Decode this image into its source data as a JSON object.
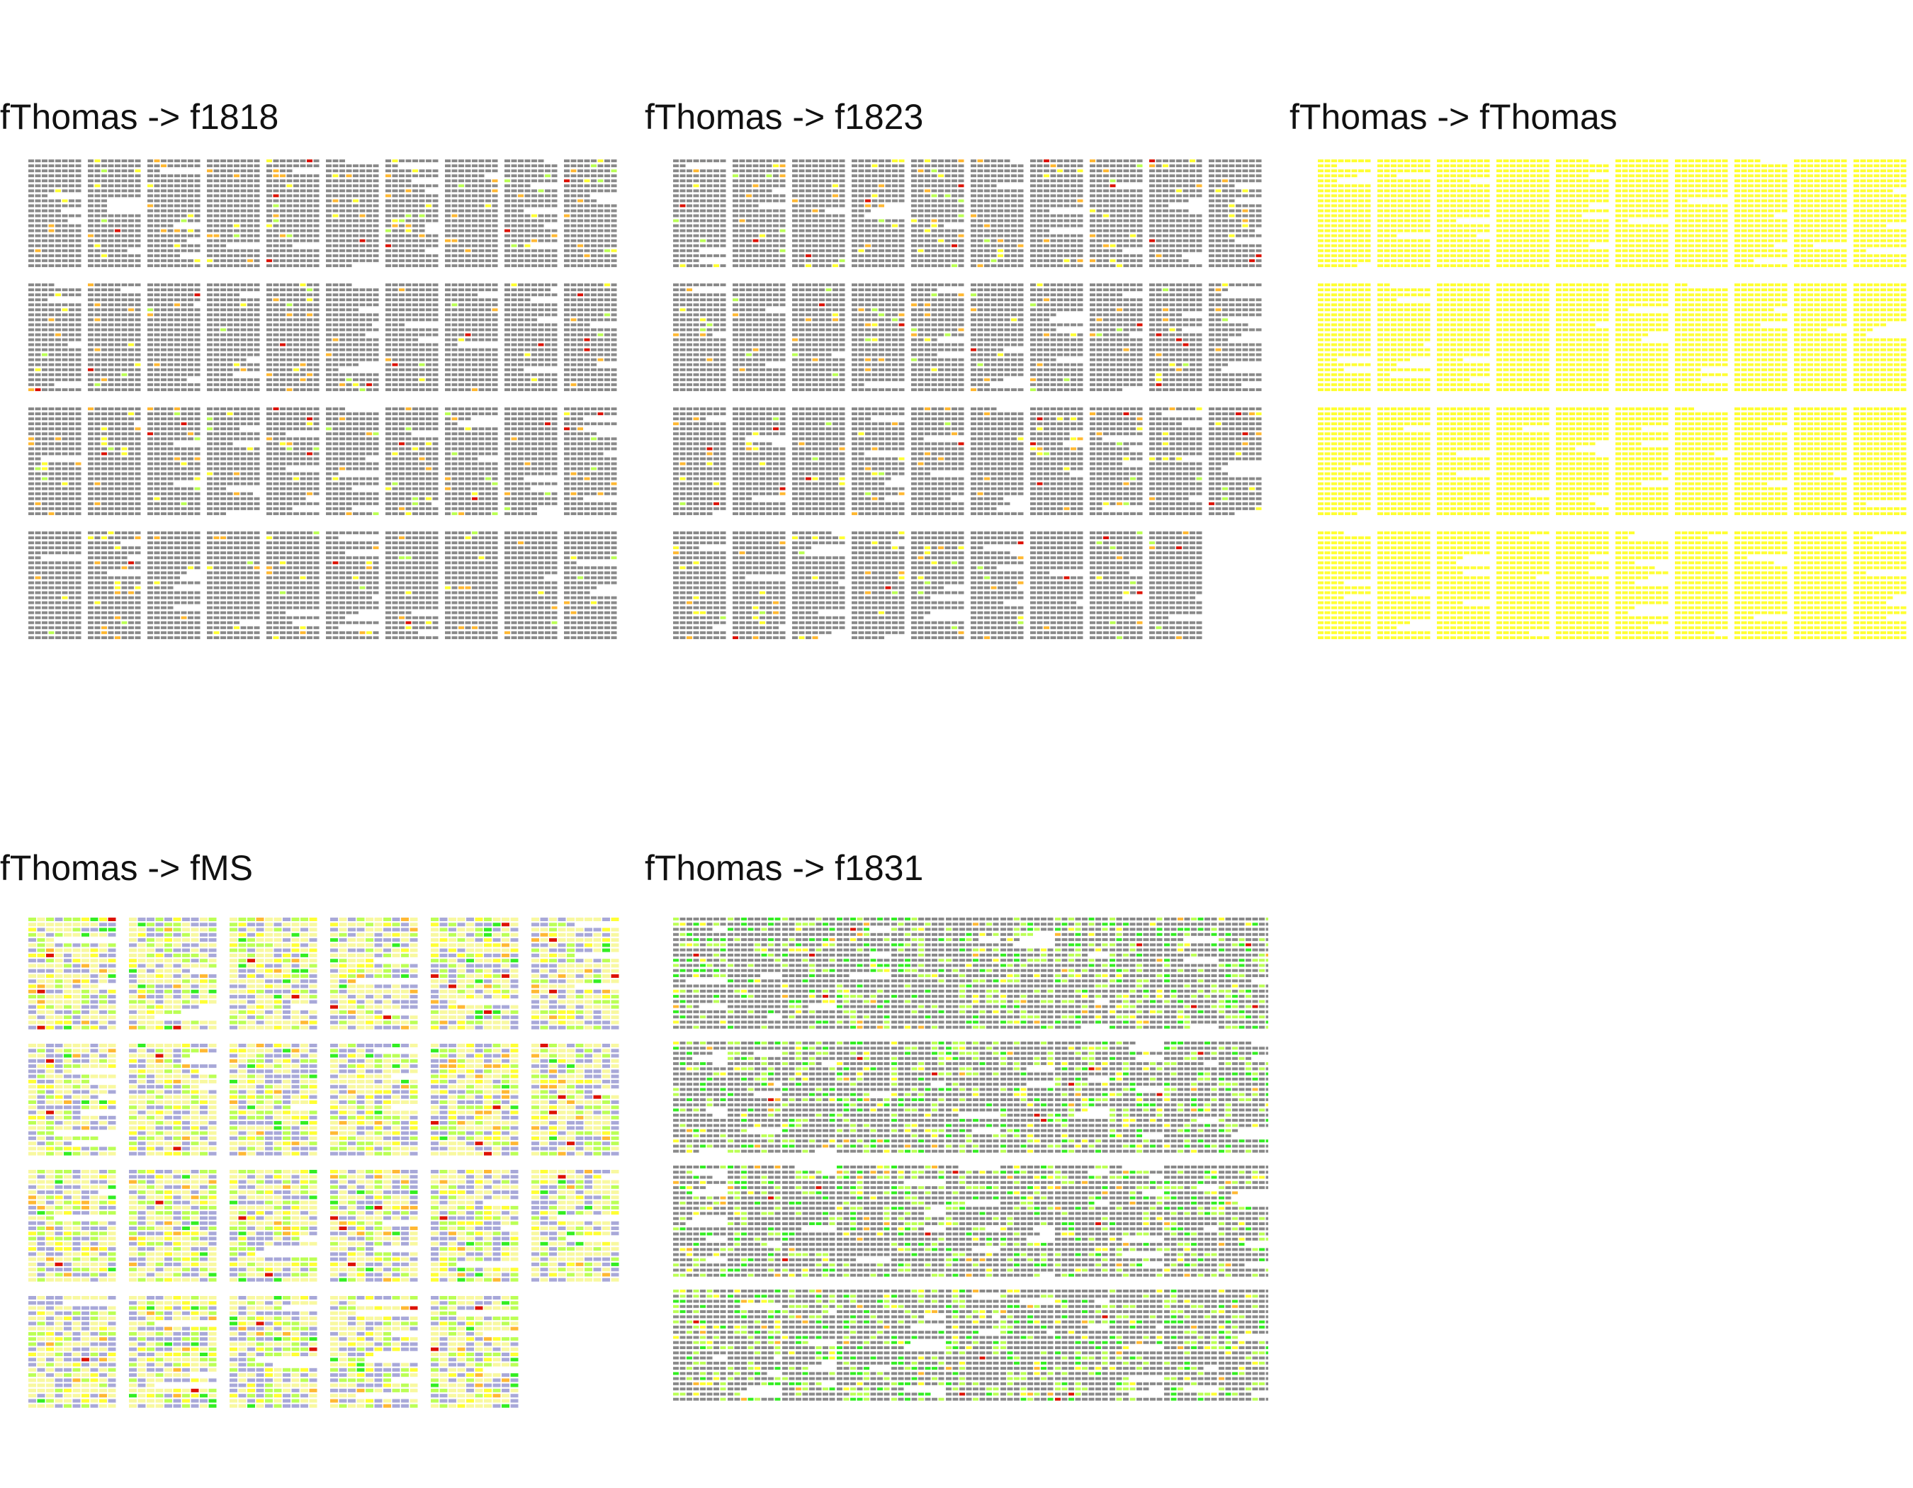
{
  "colors": {
    "gray": "#8a8a8a",
    "lightgray": "#bdbdbd",
    "yellow": "#ffff33",
    "paleyellow": "#f8f8a0",
    "orange": "#ffb833",
    "red": "#dd1100",
    "green": "#33ee22",
    "lightgreen": "#bbff55",
    "lavender": "#a8a8d8"
  },
  "panels": [
    {
      "id": "p1",
      "title": "fThomas -> f1818",
      "blocks_per_row": 10,
      "block_rows": 4,
      "last_row_blocks": 10,
      "lines": 22,
      "chars": 8,
      "base": "gray",
      "accents": {
        "orange": 0.02,
        "yellow": 0.015,
        "lightgreen": 0.01,
        "red": 0.005
      }
    },
    {
      "id": "p2",
      "title": "fThomas -> f1823",
      "blocks_per_row": 10,
      "block_rows": 4,
      "last_row_blocks": 9,
      "lines": 22,
      "chars": 8,
      "base": "gray",
      "accents": {
        "orange": 0.02,
        "yellow": 0.015,
        "lightgreen": 0.012,
        "red": 0.005
      }
    },
    {
      "id": "p3",
      "title": "fThomas -> fThomas",
      "blocks_per_row": 10,
      "block_rows": 4,
      "last_row_blocks": 10,
      "lines": 22,
      "chars": 8,
      "base": "yellow",
      "accents": {}
    },
    {
      "id": "p4",
      "title": "fThomas -> fMS",
      "blocks_per_row": 6,
      "block_rows": 4,
      "last_row_blocks": 5,
      "lines": 22,
      "chars": 10,
      "base": "paleyellow",
      "accents": {
        "lavender": 0.28,
        "lightgreen": 0.16,
        "yellow": 0.08,
        "orange": 0.03,
        "green": 0.03,
        "red": 0.008
      }
    },
    {
      "id": "p5",
      "title": "fThomas -> f1831",
      "blocks_per_row": 11,
      "block_rows": 4,
      "last_row_blocks": 11,
      "lines": 22,
      "chars": 8,
      "base": "gray",
      "accents": {
        "lightgreen": 0.15,
        "green": 0.08,
        "yellow": 0.04,
        "orange": 0.015,
        "red": 0.004
      }
    }
  ]
}
